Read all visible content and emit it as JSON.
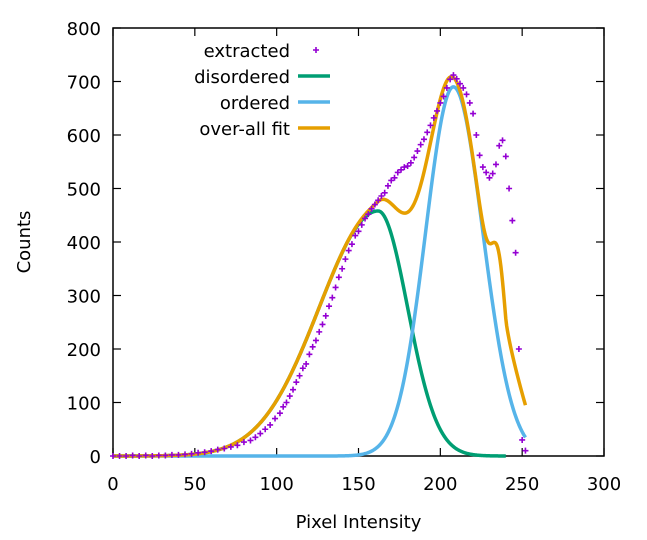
{
  "chart_data": {
    "type": "scatter",
    "title": "",
    "xlabel": "Pixel Intensity",
    "ylabel": "Counts",
    "xlim": [
      0,
      300
    ],
    "ylim": [
      0,
      800
    ],
    "xticks": [
      0,
      50,
      100,
      150,
      200,
      250,
      300
    ],
    "yticks": [
      0,
      100,
      200,
      300,
      400,
      500,
      600,
      700,
      800
    ],
    "grid": false,
    "legend_position": "top-left",
    "series": [
      {
        "name": "extracted",
        "kind": "points",
        "color": "#9400d3",
        "points": [
          [
            0,
            0
          ],
          [
            4,
            0
          ],
          [
            8,
            0
          ],
          [
            12,
            1
          ],
          [
            16,
            0
          ],
          [
            20,
            1
          ],
          [
            24,
            0
          ],
          [
            28,
            1
          ],
          [
            32,
            1
          ],
          [
            36,
            2
          ],
          [
            40,
            2
          ],
          [
            44,
            3
          ],
          [
            48,
            4
          ],
          [
            52,
            6
          ],
          [
            56,
            7
          ],
          [
            60,
            9
          ],
          [
            64,
            12
          ],
          [
            68,
            14
          ],
          [
            72,
            17
          ],
          [
            76,
            20
          ],
          [
            80,
            26
          ],
          [
            84,
            29
          ],
          [
            87,
            35
          ],
          [
            90,
            42
          ],
          [
            93,
            50
          ],
          [
            96,
            58
          ],
          [
            99,
            70
          ],
          [
            102,
            80
          ],
          [
            104,
            92
          ],
          [
            106,
            100
          ],
          [
            108,
            112
          ],
          [
            110,
            124
          ],
          [
            112,
            138
          ],
          [
            114,
            150
          ],
          [
            116,
            164
          ],
          [
            118,
            172
          ],
          [
            120,
            190
          ],
          [
            122,
            204
          ],
          [
            124,
            216
          ],
          [
            126,
            232
          ],
          [
            128,
            246
          ],
          [
            130,
            262
          ],
          [
            132,
            280
          ],
          [
            134,
            296
          ],
          [
            136,
            315
          ],
          [
            138,
            334
          ],
          [
            140,
            350
          ],
          [
            142,
            368
          ],
          [
            144,
            384
          ],
          [
            146,
            396
          ],
          [
            148,
            412
          ],
          [
            150,
            420
          ],
          [
            152,
            432
          ],
          [
            154,
            444
          ],
          [
            156,
            452
          ],
          [
            158,
            462
          ],
          [
            160,
            470
          ],
          [
            162,
            478
          ],
          [
            164,
            486
          ],
          [
            166,
            492
          ],
          [
            168,
            505
          ],
          [
            170,
            515
          ],
          [
            172,
            520
          ],
          [
            174,
            530
          ],
          [
            176,
            535
          ],
          [
            178,
            540
          ],
          [
            180,
            542
          ],
          [
            182,
            548
          ],
          [
            184,
            558
          ],
          [
            186,
            570
          ],
          [
            188,
            582
          ],
          [
            190,
            592
          ],
          [
            192,
            605
          ],
          [
            194,
            618
          ],
          [
            196,
            632
          ],
          [
            198,
            645
          ],
          [
            200,
            660
          ],
          [
            202,
            672
          ],
          [
            204,
            688
          ],
          [
            206,
            704
          ],
          [
            208,
            712
          ],
          [
            210,
            705
          ],
          [
            212,
            696
          ],
          [
            214,
            688
          ],
          [
            216,
            676
          ],
          [
            218,
            660
          ],
          [
            220,
            640
          ],
          [
            222,
            600
          ],
          [
            224,
            562
          ],
          [
            226,
            540
          ],
          [
            228,
            530
          ],
          [
            230,
            520
          ],
          [
            232,
            528
          ],
          [
            234,
            545
          ],
          [
            236,
            580
          ],
          [
            238,
            590
          ],
          [
            240,
            560
          ],
          [
            242,
            500
          ],
          [
            244,
            440
          ],
          [
            246,
            380
          ],
          [
            248,
            200
          ],
          [
            250,
            30
          ],
          [
            252,
            10
          ]
        ]
      },
      {
        "name": "disordered",
        "kind": "curve",
        "color": "#009e73",
        "gaussian": {
          "amplitude": 458,
          "center": 162,
          "sigma_left": 36,
          "sigma_right": 18
        }
      },
      {
        "name": "ordered",
        "kind": "curve",
        "color": "#56b4e9",
        "gaussian": {
          "amplitude": 690,
          "center": 208,
          "sigma_left": 17,
          "sigma_right": 18
        },
        "x_range": [
          0,
          252
        ]
      },
      {
        "name": "over-all fit",
        "kind": "curve",
        "color": "#e69f00",
        "x_range": [
          0,
          252
        ],
        "extra_peak": {
          "amplitude": 170,
          "center": 236,
          "sigma": 4.5
        },
        "cutoff": {
          "start": 240,
          "end": 252,
          "final": 95
        }
      }
    ]
  }
}
